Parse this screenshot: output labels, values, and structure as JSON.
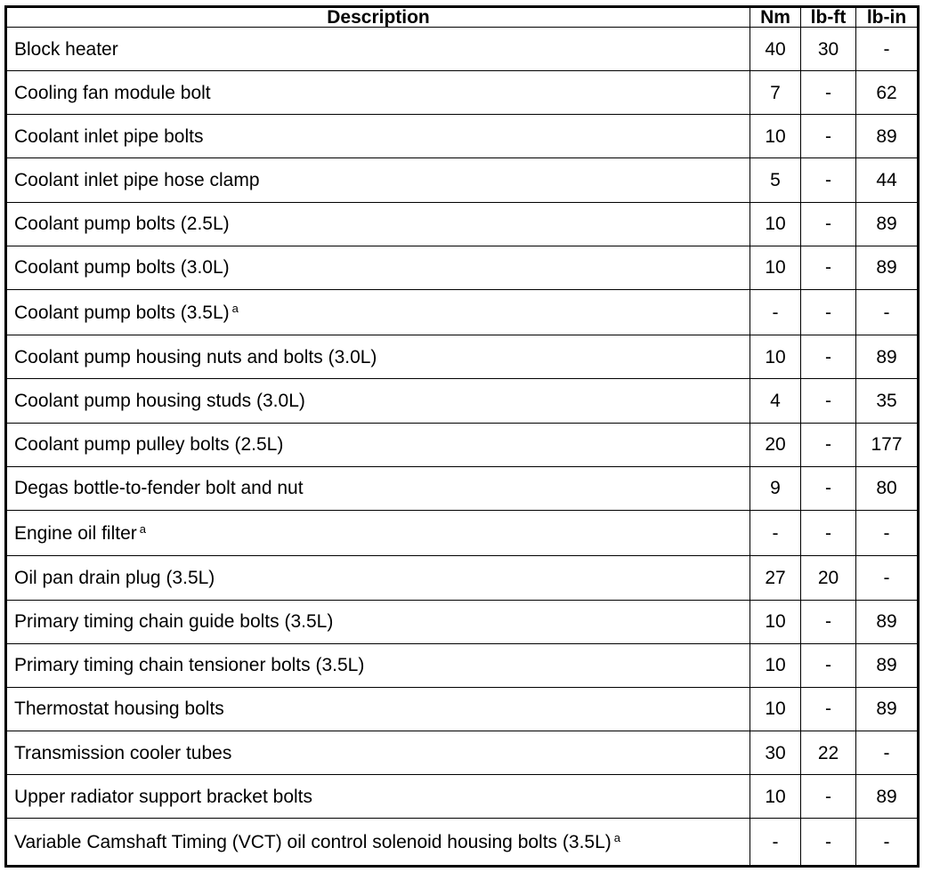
{
  "headers": [
    "Description",
    "Nm",
    "lb-ft",
    "lb-in"
  ],
  "rows": [
    {
      "description": "Block heater",
      "note": "",
      "nm": "40",
      "lbft": "30",
      "lbin": "-"
    },
    {
      "description": "Cooling fan module bolt",
      "note": "",
      "nm": "7",
      "lbft": "-",
      "lbin": "62"
    },
    {
      "description": "Coolant inlet pipe bolts",
      "note": "",
      "nm": "10",
      "lbft": "-",
      "lbin": "89"
    },
    {
      "description": "Coolant inlet pipe hose clamp",
      "note": "",
      "nm": "5",
      "lbft": "-",
      "lbin": "44"
    },
    {
      "description": "Coolant pump bolts (2.5L)",
      "note": "",
      "nm": "10",
      "lbft": "-",
      "lbin": "89"
    },
    {
      "description": "Coolant pump bolts (3.0L)",
      "note": "",
      "nm": "10",
      "lbft": "-",
      "lbin": "89"
    },
    {
      "description": "Coolant pump bolts (3.5L)",
      "note": "a",
      "nm": "-",
      "lbft": "-",
      "lbin": "-"
    },
    {
      "description": "Coolant pump housing nuts and bolts (3.0L)",
      "note": "",
      "nm": "10",
      "lbft": "-",
      "lbin": "89"
    },
    {
      "description": "Coolant pump housing studs (3.0L)",
      "note": "",
      "nm": "4",
      "lbft": "-",
      "lbin": "35"
    },
    {
      "description": "Coolant pump pulley bolts (2.5L)",
      "note": "",
      "nm": "20",
      "lbft": "-",
      "lbin": "177"
    },
    {
      "description": "Degas bottle-to-fender bolt and nut",
      "note": "",
      "nm": "9",
      "lbft": "-",
      "lbin": "80"
    },
    {
      "description": "Engine oil filter",
      "note": "a",
      "nm": "-",
      "lbft": "-",
      "lbin": "-"
    },
    {
      "description": "Oil pan drain plug (3.5L)",
      "note": "",
      "nm": "27",
      "lbft": "20",
      "lbin": "-"
    },
    {
      "description": "Primary timing chain guide bolts (3.5L)",
      "note": "",
      "nm": "10",
      "lbft": "-",
      "lbin": "89"
    },
    {
      "description": "Primary timing chain tensioner bolts (3.5L)",
      "note": "",
      "nm": "10",
      "lbft": "-",
      "lbin": "89"
    },
    {
      "description": "Thermostat housing bolts",
      "note": "",
      "nm": "10",
      "lbft": "-",
      "lbin": "89"
    },
    {
      "description": "Transmission cooler tubes",
      "note": "",
      "nm": "30",
      "lbft": "22",
      "lbin": "-"
    },
    {
      "description": "Upper radiator support bracket bolts",
      "note": "",
      "nm": "10",
      "lbft": "-",
      "lbin": "89"
    },
    {
      "description": "Variable Camshaft Timing (VCT) oil control solenoid housing bolts (3.5L)",
      "note": "a",
      "nm": "-",
      "lbft": "-",
      "lbin": "-"
    }
  ]
}
